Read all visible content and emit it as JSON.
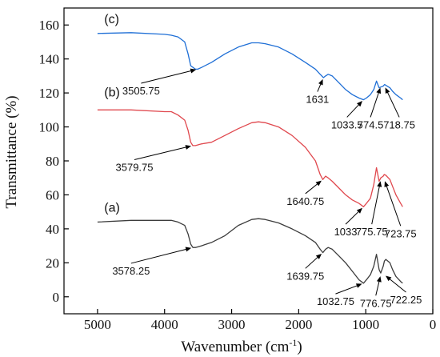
{
  "chart_data": {
    "type": "line",
    "xlabel": "Wavenumber (cm",
    "xlabel_sup": "-1",
    "xlabel_close": ")",
    "ylabel": "Transmittance (%)",
    "xlim": [
      5500,
      0
    ],
    "ylim": [
      -10,
      170
    ],
    "x_ticks": [
      5000,
      4000,
      3000,
      2000,
      1000,
      0
    ],
    "y_ticks": [
      0,
      20,
      40,
      60,
      80,
      100,
      120,
      140,
      160
    ],
    "grid": false,
    "legend": "none",
    "series": [
      {
        "label": "(a)",
        "color": "#3c3c3c",
        "label_pos": [
          4900,
          50
        ],
        "x": [
          5000,
          4500,
          4000,
          3900,
          3800,
          3700,
          3650,
          3610,
          3578.25,
          3540,
          3450,
          3300,
          3100,
          2900,
          2700,
          2600,
          2500,
          2300,
          2100,
          1900,
          1750,
          1680,
          1639.75,
          1600,
          1560,
          1500,
          1400,
          1300,
          1200,
          1100,
          1032.75,
          990,
          930,
          880,
          840,
          800,
          776.75,
          740,
          722.25,
          700,
          640,
          600,
          550,
          480,
          450
        ],
        "y": [
          44,
          45,
          45,
          45,
          44,
          42,
          37,
          31,
          29,
          29,
          30,
          32,
          36,
          42,
          45.5,
          46,
          45.5,
          43.5,
          40,
          36,
          32,
          28,
          26,
          28,
          29,
          28,
          24,
          20,
          15,
          10,
          8,
          10,
          13,
          18,
          25,
          16,
          14,
          18,
          21,
          22,
          20,
          16,
          12,
          9,
          8
        ]
      },
      {
        "label": "(b)",
        "color": "#e0484e",
        "label_pos": [
          4900,
          118
        ],
        "x": [
          5000,
          4500,
          4000,
          3900,
          3800,
          3700,
          3650,
          3610,
          3579.75,
          3540,
          3450,
          3300,
          3100,
          2900,
          2700,
          2600,
          2500,
          2300,
          2100,
          1900,
          1750,
          1680,
          1640.75,
          1600,
          1560,
          1500,
          1400,
          1300,
          1200,
          1100,
          1033,
          990,
          930,
          880,
          840,
          800,
          775.75,
          740,
          723.75,
          700,
          640,
          600,
          550,
          480,
          450
        ],
        "y": [
          110,
          110,
          109,
          109,
          107,
          104,
          98,
          91,
          89,
          89,
          90,
          91,
          95,
          99,
          102.5,
          103,
          102.5,
          100,
          95,
          88,
          80,
          72,
          69,
          71,
          70,
          68,
          64,
          60,
          57,
          55,
          53,
          55,
          58,
          66,
          76,
          68,
          70,
          71,
          72,
          71.5,
          69,
          65,
          60,
          55,
          53
        ]
      },
      {
        "label": "(c)",
        "color": "#1f6fd6",
        "label_pos": [
          4900,
          161
        ],
        "x": [
          5000,
          4500,
          4000,
          3900,
          3800,
          3700,
          3650,
          3610,
          3540,
          3505.75,
          3450,
          3300,
          3100,
          2900,
          2700,
          2600,
          2500,
          2300,
          2100,
          1900,
          1750,
          1680,
          1631,
          1600,
          1560,
          1500,
          1400,
          1300,
          1200,
          1100,
          1033.5,
          990,
          930,
          880,
          840,
          800,
          774.5,
          740,
          718.75,
          700,
          640,
          600,
          550,
          480,
          450
        ],
        "y": [
          155,
          155.5,
          154.5,
          154,
          153,
          150,
          143,
          136,
          134,
          134,
          135,
          138,
          143,
          147,
          149.5,
          149.5,
          149,
          147,
          143,
          138,
          134,
          131,
          129,
          130,
          131,
          130,
          126,
          122,
          119,
          117,
          116,
          117,
          119,
          122,
          127,
          123,
          123.5,
          124,
          125,
          124.5,
          123,
          121,
          119,
          117,
          116
        ]
      }
    ],
    "annotations": [
      {
        "text": "3505.75",
        "series": "(c)",
        "target": [
          3505.75,
          134
        ],
        "text_pos": [
          4350,
          121
        ]
      },
      {
        "text": "1631",
        "series": "(c)",
        "target": [
          1631,
          129
        ],
        "text_pos": [
          1720,
          116
        ]
      },
      {
        "text": "1033.5",
        "series": "(c)",
        "target": [
          1033.5,
          116
        ],
        "text_pos": [
          1280,
          101
        ]
      },
      {
        "text": "774.5",
        "series": "(c)",
        "target": [
          774.5,
          124
        ],
        "text_pos": [
          930,
          101
        ]
      },
      {
        "text": "718.75",
        "series": "(c)",
        "target": [
          718.75,
          124
        ],
        "text_pos": [
          500,
          101
        ]
      },
      {
        "text": "3579.75",
        "series": "(b)",
        "target": [
          3579.75,
          89
        ],
        "text_pos": [
          4450,
          76
        ]
      },
      {
        "text": "1640.75",
        "series": "(b)",
        "target": [
          1640.75,
          69
        ],
        "text_pos": [
          1900,
          56
        ]
      },
      {
        "text": "1033",
        "series": "(b)",
        "target": [
          1033,
          53
        ],
        "text_pos": [
          1300,
          38
        ]
      },
      {
        "text": "775.75",
        "series": "(b)",
        "target": [
          775.75,
          69
        ],
        "text_pos": [
          910,
          38
        ]
      },
      {
        "text": "723.75",
        "series": "(b)",
        "target": [
          723.75,
          69
        ],
        "text_pos": [
          480,
          37
        ]
      },
      {
        "text": "3578.25",
        "series": "(a)",
        "target": [
          3578.25,
          29
        ],
        "text_pos": [
          4500,
          15
        ]
      },
      {
        "text": "1639.75",
        "series": "(a)",
        "target": [
          1639.75,
          26
        ],
        "text_pos": [
          1900,
          12
        ]
      },
      {
        "text": "1032.75",
        "series": "(a)",
        "target": [
          1032.75,
          8
        ],
        "text_pos": [
          1450,
          -3
        ]
      },
      {
        "text": "776.75",
        "series": "(a)",
        "target": [
          776.75,
          13
        ],
        "text_pos": [
          850,
          -4
        ]
      },
      {
        "text": "722.25",
        "series": "(a)",
        "target": [
          722.25,
          13
        ],
        "text_pos": [
          400,
          -2
        ]
      }
    ]
  }
}
